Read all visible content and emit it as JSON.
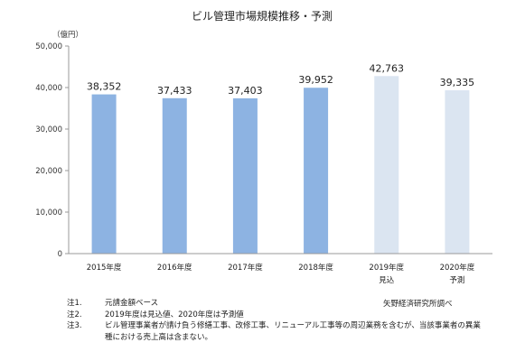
{
  "chart_data": {
    "type": "bar",
    "title": "ビル管理市場規模推移・予測",
    "unit_label": "（億円）",
    "categories": [
      "2015年度",
      "2016年度",
      "2017年度",
      "2018年度",
      "2019年度",
      "2020年度"
    ],
    "category_sublabels": [
      "",
      "",
      "",
      "",
      "見込",
      "予測"
    ],
    "values": [
      38352,
      37433,
      37403,
      39952,
      42763,
      39335
    ],
    "value_labels": [
      "38,352",
      "37,433",
      "37,403",
      "39,952",
      "42,763",
      "39,335"
    ],
    "ylim": [
      0,
      50000
    ],
    "yticks": [
      0,
      10000,
      20000,
      30000,
      40000,
      50000
    ],
    "ytick_labels": [
      "0",
      "10,000",
      "20,000",
      "30,000",
      "40,000",
      "50,000"
    ],
    "grid": false,
    "colors": {
      "actual": "#8db3e2",
      "forecast": "#dbe5f1",
      "axis": "#999999"
    },
    "bar_status": [
      "actual",
      "actual",
      "actual",
      "actual",
      "forecast",
      "forecast"
    ]
  },
  "notes": [
    {
      "id": "注1.",
      "text": "元請金額ベース"
    },
    {
      "id": "注2.",
      "text": "2019年度は見込値、2020年度は予測値"
    },
    {
      "id": "注3.",
      "text": "ビル管理事業者が請け負う修繕工事、改修工事、リニューアル工事等の周辺業務を含むが、当該事業者の異業種における売上高は含まない。"
    }
  ],
  "source": "矢野経済研究所調べ"
}
